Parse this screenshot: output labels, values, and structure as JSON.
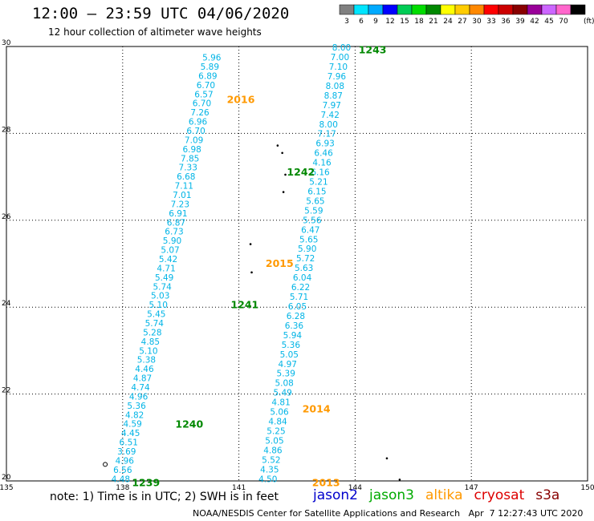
{
  "header": {
    "title": "12:00 – 23:59 UTC 04/06/2020",
    "subtitle": "12 hour collection of altimeter wave heights"
  },
  "colorbar": {
    "unit": "(ft)",
    "bins": [
      {
        "label": "3",
        "color": "#808080"
      },
      {
        "label": "6",
        "color": "#00e5ff"
      },
      {
        "label": "9",
        "color": "#00aaff"
      },
      {
        "label": "12",
        "color": "#0000ff"
      },
      {
        "label": "15",
        "color": "#00cc55"
      },
      {
        "label": "18",
        "color": "#00dd00"
      },
      {
        "label": "21",
        "color": "#008800"
      },
      {
        "label": "24",
        "color": "#ffff00"
      },
      {
        "label": "27",
        "color": "#ffcc00"
      },
      {
        "label": "30",
        "color": "#ff8800"
      },
      {
        "label": "33",
        "color": "#ff0000"
      },
      {
        "label": "36",
        "color": "#cc0000"
      },
      {
        "label": "39",
        "color": "#880000"
      },
      {
        "label": "42",
        "color": "#990099"
      },
      {
        "label": "45",
        "color": "#cc66ff"
      },
      {
        "label": "70",
        "color": "#ff66cc"
      },
      {
        "label": "",
        "color": "#000000"
      }
    ]
  },
  "map": {
    "lon_range": [
      135,
      150
    ],
    "lat_range": [
      20,
      30
    ],
    "x_ticks": [
      "135",
      "138",
      "141",
      "144",
      "147",
      "150"
    ],
    "y_ticks": [
      "20",
      "22",
      "24",
      "26",
      "28",
      "30"
    ],
    "colors": {
      "height": "#00b4e6",
      "time_a": "#008800",
      "time_b": "#ff9900"
    },
    "track_descending": [
      {
        "v": "5.96",
        "lon": 141.23,
        "lat": 30.0,
        "rot": 0
      },
      {
        "v": "5.89",
        "lon": 141.32,
        "lat": 30.0,
        "rot": 0
      }
    ],
    "track_ascending": [],
    "times_green": [
      {
        "v": "1243",
        "lon": 144.45,
        "lat": 29.92
      },
      {
        "v": "1242",
        "lon": 142.6,
        "lat": 27.1
      },
      {
        "v": "1241",
        "lon": 141.15,
        "lat": 24.05
      },
      {
        "v": "1240",
        "lon": 139.72,
        "lat": 21.3
      },
      {
        "v": "1239",
        "lon": 138.6,
        "lat": 19.95
      }
    ],
    "times_orange": [
      {
        "v": "2016",
        "lon": 141.05,
        "lat": 28.77
      },
      {
        "v": "2015",
        "lon": 142.05,
        "lat": 25.0
      },
      {
        "v": "2014",
        "lon": 143.0,
        "lat": 21.65
      },
      {
        "v": "2013",
        "lon": 143.25,
        "lat": 19.95
      }
    ],
    "desc_values": [
      "5.96",
      "5.89",
      "6.89",
      "6.70",
      "6.57",
      "6.70",
      "7.26",
      "6.96",
      "6.70",
      "7.09",
      "6.98",
      "7.85",
      "7.33",
      "6.68",
      "7.11",
      "7.01",
      "7.23",
      "6.91",
      "6.87",
      "6.73",
      "5.90",
      "5.07",
      "5.42",
      "4.71",
      "5.49",
      "5.74",
      "5.03",
      "5.10",
      "5.45",
      "5.74",
      "5.28",
      "4.85",
      "5.10",
      "5.38",
      "4.46",
      "4.87",
      "4.74",
      "4.96",
      "5.36",
      "4.82",
      "4.59",
      "4.45",
      "6.51",
      "3.69",
      "4.96",
      "6.56",
      "4.48"
    ],
    "asc_values": [
      "8.00",
      "7.00",
      "7.10",
      "7.96",
      "8.08",
      "8.87",
      "7.97",
      "7.42",
      "8.00",
      "7.17",
      "6.93",
      "6.46",
      "4.16",
      "6.16",
      "5.21",
      "6.15",
      "5.65",
      "5.59",
      "5.56",
      "6.47",
      "5.65",
      "5.90",
      "5.72",
      "5.63",
      "6.04",
      "6.22",
      "5.71",
      "6.05",
      "6.28",
      "6.36",
      "5.94",
      "5.36",
      "5.05",
      "4.97",
      "5.39",
      "5.08",
      "5.49",
      "4.81",
      "5.06",
      "4.84",
      "5.25",
      "5.05",
      "4.86",
      "5.52",
      "4.35",
      "4.50"
    ]
  },
  "footer": {
    "note": "note: 1) Time is in UTC; 2) SWH is in feet",
    "satellites": [
      {
        "name": "jason2",
        "color": "#0000cc"
      },
      {
        "name": "jason3",
        "color": "#00aa00"
      },
      {
        "name": "altika",
        "color": "#ff9900"
      },
      {
        "name": "cryosat",
        "color": "#dd0000"
      },
      {
        "name": "s3a",
        "color": "#880000"
      }
    ],
    "credit": "NOAA/NESDIS Center for Satellite Applications and Research   Apr  7 12:27:43 UTC 2020"
  }
}
